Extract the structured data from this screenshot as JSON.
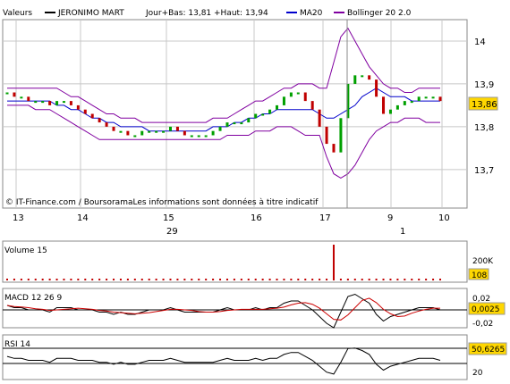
{
  "header": {
    "label": "Valeurs",
    "instrument": "JERONIMO MART",
    "dayrange": "Jour+Bas: 13,81 +Haut: 13,94",
    "ma_label": "MA20",
    "boll_label": "Bollinger 20 2.0"
  },
  "colors": {
    "up": "#00a000",
    "down": "#c00000",
    "ma": "#0000cc",
    "bollinger": "#8000a0",
    "volume": "#c00000",
    "signal": "#cc0000",
    "label_bg": "#ffd700",
    "grid": "#c8c8c8"
  },
  "copyright": "© IT-Finance.com / BoursoramaLes informations sont données à titre indicatif",
  "price_axis": {
    "ticks": [
      "14",
      "13,9",
      "13,8",
      "13,7"
    ],
    "ticks_values": [
      14.0,
      13.9,
      13.8,
      13.7
    ],
    "range": [
      13.61,
      14.05
    ],
    "last_label": "13,86",
    "last_value": 13.86
  },
  "x_axis": {
    "day_ticks": [
      "13",
      "14",
      "15",
      "16",
      "17",
      "9",
      "10"
    ],
    "month_ticks": [
      "29",
      "1"
    ]
  },
  "volume_panel": {
    "title": "Volume 15",
    "tick": "200K",
    "last_label": "108"
  },
  "macd_panel": {
    "title": "MACD 12 26 9",
    "ticks": [
      "0,02",
      "-0,02"
    ],
    "last_label": "0,0025"
  },
  "rsi_panel": {
    "title": "RSI 14",
    "tick": "20",
    "last_label": "50,6265"
  },
  "chart_data": {
    "type": "line",
    "title": "JERONIMO MART",
    "y_range": [
      13.61,
      14.05
    ],
    "days": [
      "13",
      "14",
      "15",
      "16",
      "17",
      "9",
      "10"
    ],
    "close": [
      13.88,
      13.87,
      13.87,
      13.86,
      13.86,
      13.86,
      13.85,
      13.86,
      13.86,
      13.85,
      13.84,
      13.83,
      13.82,
      13.81,
      13.8,
      13.79,
      13.79,
      13.78,
      13.78,
      13.79,
      13.79,
      13.79,
      13.79,
      13.8,
      13.79,
      13.78,
      13.78,
      13.78,
      13.78,
      13.79,
      13.8,
      13.81,
      13.81,
      13.81,
      13.82,
      13.83,
      13.83,
      13.84,
      13.85,
      13.87,
      13.88,
      13.88,
      13.86,
      13.84,
      13.8,
      13.76,
      13.74,
      13.82,
      13.9,
      13.92,
      13.92,
      13.91,
      13.87,
      13.83,
      13.84,
      13.85,
      13.86,
      13.86,
      13.87,
      13.87,
      13.87,
      13.86
    ],
    "ma20": [
      13.86,
      13.86,
      13.86,
      13.86,
      13.86,
      13.86,
      13.86,
      13.85,
      13.85,
      13.84,
      13.84,
      13.83,
      13.82,
      13.82,
      13.81,
      13.81,
      13.8,
      13.8,
      13.8,
      13.8,
      13.79,
      13.79,
      13.79,
      13.79,
      13.79,
      13.79,
      13.79,
      13.79,
      13.79,
      13.8,
      13.8,
      13.8,
      13.81,
      13.81,
      13.82,
      13.82,
      13.83,
      13.83,
      13.84,
      13.84,
      13.84,
      13.84,
      13.84,
      13.84,
      13.83,
      13.82,
      13.82,
      13.83,
      13.84,
      13.85,
      13.87,
      13.88,
      13.89,
      13.88,
      13.87,
      13.87,
      13.87,
      13.86,
      13.86,
      13.86,
      13.86,
      13.86
    ],
    "bollinger_upper": [
      13.89,
      13.89,
      13.89,
      13.89,
      13.89,
      13.89,
      13.89,
      13.89,
      13.88,
      13.87,
      13.87,
      13.86,
      13.85,
      13.84,
      13.83,
      13.83,
      13.82,
      13.82,
      13.82,
      13.81,
      13.81,
      13.81,
      13.81,
      13.81,
      13.81,
      13.81,
      13.81,
      13.81,
      13.81,
      13.82,
      13.82,
      13.82,
      13.83,
      13.84,
      13.85,
      13.86,
      13.86,
      13.87,
      13.88,
      13.89,
      13.89,
      13.9,
      13.9,
      13.9,
      13.89,
      13.89,
      13.95,
      14.01,
      14.03,
      14.0,
      13.97,
      13.94,
      13.92,
      13.9,
      13.89,
      13.89,
      13.88,
      13.88,
      13.89,
      13.89,
      13.89,
      13.89
    ],
    "bollinger_lower": [
      13.85,
      13.85,
      13.85,
      13.85,
      13.84,
      13.84,
      13.84,
      13.83,
      13.82,
      13.81,
      13.8,
      13.79,
      13.78,
      13.77,
      13.77,
      13.77,
      13.77,
      13.77,
      13.77,
      13.77,
      13.77,
      13.77,
      13.77,
      13.77,
      13.77,
      13.77,
      13.77,
      13.77,
      13.77,
      13.77,
      13.77,
      13.78,
      13.78,
      13.78,
      13.78,
      13.79,
      13.79,
      13.79,
      13.8,
      13.8,
      13.8,
      13.79,
      13.78,
      13.78,
      13.78,
      13.73,
      13.69,
      13.68,
      13.69,
      13.71,
      13.74,
      13.77,
      13.79,
      13.8,
      13.81,
      13.81,
      13.82,
      13.82,
      13.82,
      13.81,
      13.81,
      13.81
    ],
    "volume_spike_index": 46,
    "volume_last": 108
  }
}
